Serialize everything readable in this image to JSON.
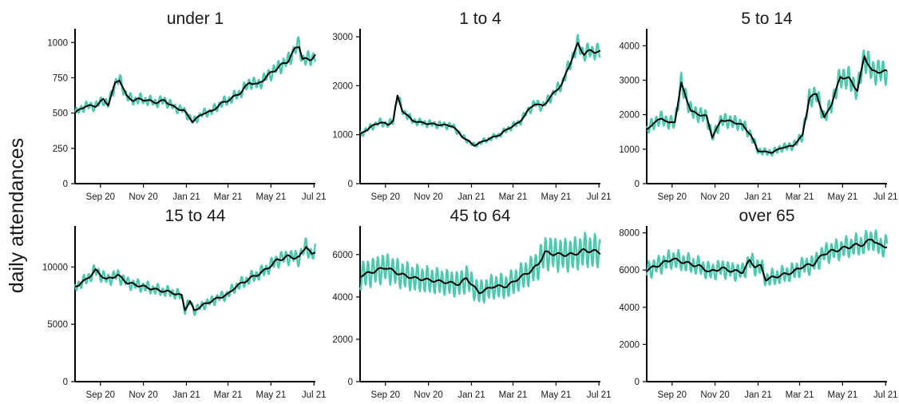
{
  "chart_data": {
    "type": "line",
    "ylabel": "daily attendances",
    "x_start": "2020-07-27",
    "x_end": "2021-07-03",
    "x_ticks": [
      {
        "date": "2020-09-01",
        "label": "Sep 20"
      },
      {
        "date": "2020-11-01",
        "label": "Nov 20"
      },
      {
        "date": "2021-01-01",
        "label": "Jan 21"
      },
      {
        "date": "2021-03-01",
        "label": "Mar 21"
      },
      {
        "date": "2021-05-01",
        "label": "May 21"
      },
      {
        "date": "2021-07-01",
        "label": "Jul 21"
      }
    ],
    "series_colors": {
      "daily": "#4ec9b0",
      "smoothed": "#000000"
    },
    "panels": [
      {
        "title": "under 1",
        "ylim": [
          0,
          1075
        ],
        "yticks": [
          0,
          250,
          500,
          750,
          1000
        ],
        "weekly_amplitude": 0.05,
        "trend": [
          [
            "2020-07-27",
            500
          ],
          [
            "2020-08-10",
            550
          ],
          [
            "2020-08-25",
            550
          ],
          [
            "2020-09-05",
            595
          ],
          [
            "2020-09-12",
            560
          ],
          [
            "2020-09-22",
            710
          ],
          [
            "2020-09-28",
            740
          ],
          [
            "2020-10-08",
            620
          ],
          [
            "2020-10-18",
            590
          ],
          [
            "2020-10-28",
            600
          ],
          [
            "2020-11-10",
            585
          ],
          [
            "2020-11-20",
            575
          ],
          [
            "2020-12-01",
            590
          ],
          [
            "2020-12-15",
            540
          ],
          [
            "2020-12-28",
            520
          ],
          [
            "2021-01-10",
            440
          ],
          [
            "2021-01-25",
            500
          ],
          [
            "2021-02-05",
            510
          ],
          [
            "2021-02-20",
            570
          ],
          [
            "2021-03-05",
            600
          ],
          [
            "2021-03-20",
            650
          ],
          [
            "2021-04-01",
            720
          ],
          [
            "2021-04-12",
            700
          ],
          [
            "2021-04-25",
            760
          ],
          [
            "2021-05-10",
            820
          ],
          [
            "2021-05-25",
            870
          ],
          [
            "2021-06-05",
            960
          ],
          [
            "2021-06-10",
            980
          ],
          [
            "2021-06-15",
            880
          ],
          [
            "2021-06-25",
            880
          ],
          [
            "2021-07-03",
            910
          ]
        ]
      },
      {
        "title": "1 to 4",
        "ylim": [
          0,
          3100
        ],
        "yticks": [
          0,
          1000,
          2000,
          3000
        ],
        "weekly_amplitude": 0.05,
        "trend": [
          [
            "2020-07-27",
            1000
          ],
          [
            "2020-08-10",
            1150
          ],
          [
            "2020-08-25",
            1260
          ],
          [
            "2020-09-05",
            1200
          ],
          [
            "2020-09-12",
            1300
          ],
          [
            "2020-09-18",
            1780
          ],
          [
            "2020-09-25",
            1500
          ],
          [
            "2020-10-08",
            1300
          ],
          [
            "2020-10-20",
            1250
          ],
          [
            "2020-11-05",
            1220
          ],
          [
            "2020-11-20",
            1200
          ],
          [
            "2020-12-05",
            1180
          ],
          [
            "2020-12-20",
            950
          ],
          [
            "2021-01-05",
            780
          ],
          [
            "2021-01-20",
            880
          ],
          [
            "2021-02-10",
            1000
          ],
          [
            "2021-02-25",
            1150
          ],
          [
            "2021-03-10",
            1250
          ],
          [
            "2021-03-20",
            1450
          ],
          [
            "2021-04-01",
            1640
          ],
          [
            "2021-04-12",
            1580
          ],
          [
            "2021-04-25",
            1800
          ],
          [
            "2021-05-10",
            2050
          ],
          [
            "2021-05-22",
            2500
          ],
          [
            "2021-06-01",
            2850
          ],
          [
            "2021-06-10",
            2650
          ],
          [
            "2021-06-20",
            2720
          ],
          [
            "2021-07-03",
            2680
          ]
        ]
      },
      {
        "title": "5 to 14",
        "ylim": [
          0,
          4400
        ],
        "yticks": [
          0,
          1000,
          2000,
          3000,
          4000
        ],
        "weekly_amplitude": 0.1,
        "trend": [
          [
            "2020-07-27",
            1550
          ],
          [
            "2020-08-05",
            1750
          ],
          [
            "2020-08-18",
            1900
          ],
          [
            "2020-08-28",
            1750
          ],
          [
            "2020-09-05",
            1800
          ],
          [
            "2020-09-14",
            2900
          ],
          [
            "2020-09-28",
            2100
          ],
          [
            "2020-10-10",
            2000
          ],
          [
            "2020-10-20",
            1950
          ],
          [
            "2020-10-28",
            1350
          ],
          [
            "2020-11-10",
            1850
          ],
          [
            "2020-11-25",
            1800
          ],
          [
            "2020-12-10",
            1700
          ],
          [
            "2020-12-22",
            1400
          ],
          [
            "2021-01-01",
            950
          ],
          [
            "2021-01-20",
            900
          ],
          [
            "2021-02-05",
            1050
          ],
          [
            "2021-02-20",
            1100
          ],
          [
            "2021-03-05",
            1400
          ],
          [
            "2021-03-15",
            2500
          ],
          [
            "2021-03-25",
            2600
          ],
          [
            "2021-04-05",
            1900
          ],
          [
            "2021-04-15",
            2300
          ],
          [
            "2021-04-28",
            3100
          ],
          [
            "2021-05-10",
            3050
          ],
          [
            "2021-05-22",
            2700
          ],
          [
            "2021-06-01",
            3700
          ],
          [
            "2021-06-12",
            3250
          ],
          [
            "2021-07-03",
            3250
          ]
        ]
      },
      {
        "title": "15 to 44",
        "ylim": [
          0,
          13300
        ],
        "yticks": [
          0,
          5000,
          10000
        ],
        "weekly_amplitude": 0.05,
        "trend": [
          [
            "2020-07-27",
            8300
          ],
          [
            "2020-08-10",
            8800
          ],
          [
            "2020-08-25",
            9700
          ],
          [
            "2020-09-10",
            8900
          ],
          [
            "2020-09-25",
            9300
          ],
          [
            "2020-10-10",
            8600
          ],
          [
            "2020-11-01",
            8300
          ],
          [
            "2020-11-20",
            8000
          ],
          [
            "2020-12-10",
            7800
          ],
          [
            "2020-12-25",
            7500
          ],
          [
            "2020-12-30",
            6300
          ],
          [
            "2021-01-06",
            7000
          ],
          [
            "2021-01-12",
            6200
          ],
          [
            "2021-01-25",
            6700
          ],
          [
            "2021-02-15",
            7300
          ],
          [
            "2021-03-01",
            7600
          ],
          [
            "2021-03-10",
            8200
          ],
          [
            "2021-04-01",
            9000
          ],
          [
            "2021-04-20",
            9600
          ],
          [
            "2021-05-10",
            10600
          ],
          [
            "2021-05-25",
            10900
          ],
          [
            "2021-06-10",
            10800
          ],
          [
            "2021-06-20",
            11900
          ],
          [
            "2021-06-28",
            11000
          ],
          [
            "2021-07-03",
            11300
          ]
        ]
      },
      {
        "title": "45 to 64",
        "ylim": [
          0,
          7200
        ],
        "yticks": [
          0,
          2000,
          4000,
          6000
        ],
        "weekly_amplitude": 0.12,
        "trend": [
          [
            "2020-07-27",
            5000
          ],
          [
            "2020-08-15",
            5200
          ],
          [
            "2020-09-01",
            5400
          ],
          [
            "2020-09-20",
            5100
          ],
          [
            "2020-10-10",
            4900
          ],
          [
            "2020-11-01",
            4800
          ],
          [
            "2020-11-25",
            4700
          ],
          [
            "2020-12-15",
            4600
          ],
          [
            "2020-12-25",
            4900
          ],
          [
            "2021-01-01",
            4600
          ],
          [
            "2021-01-12",
            4200
          ],
          [
            "2021-02-01",
            4500
          ],
          [
            "2021-02-20",
            4500
          ],
          [
            "2021-03-10",
            4900
          ],
          [
            "2021-03-25",
            5200
          ],
          [
            "2021-04-05",
            5500
          ],
          [
            "2021-04-15",
            6100
          ],
          [
            "2021-05-05",
            6000
          ],
          [
            "2021-05-25",
            6000
          ],
          [
            "2021-06-10",
            6200
          ],
          [
            "2021-06-25",
            6150
          ],
          [
            "2021-07-03",
            6100
          ]
        ]
      },
      {
        "title": "over 65",
        "ylim": [
          0,
          8200
        ],
        "yticks": [
          0,
          2000,
          4000,
          6000,
          8000
        ],
        "weekly_amplitude": 0.07,
        "trend": [
          [
            "2020-07-27",
            6000
          ],
          [
            "2020-08-15",
            6300
          ],
          [
            "2020-09-01",
            6600
          ],
          [
            "2020-09-20",
            6400
          ],
          [
            "2020-10-10",
            6200
          ],
          [
            "2020-10-25",
            5900
          ],
          [
            "2020-11-10",
            6100
          ],
          [
            "2020-11-25",
            5950
          ],
          [
            "2020-12-10",
            5900
          ],
          [
            "2020-12-20",
            6500
          ],
          [
            "2020-12-28",
            6200
          ],
          [
            "2021-01-05",
            6200
          ],
          [
            "2021-01-12",
            5500
          ],
          [
            "2021-02-01",
            5700
          ],
          [
            "2021-02-20",
            5900
          ],
          [
            "2021-03-05",
            6200
          ],
          [
            "2021-03-20",
            6300
          ],
          [
            "2021-04-05",
            6900
          ],
          [
            "2021-04-25",
            7100
          ],
          [
            "2021-05-15",
            7300
          ],
          [
            "2021-06-01",
            7400
          ],
          [
            "2021-06-12",
            7700
          ],
          [
            "2021-06-22",
            7300
          ],
          [
            "2021-07-03",
            7300
          ]
        ]
      }
    ]
  }
}
